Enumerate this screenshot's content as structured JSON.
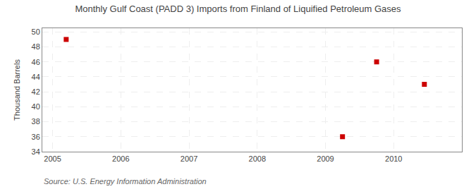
{
  "chart_data": {
    "type": "scatter",
    "title": "Monthly Gulf Coast (PADD 3) Imports from Finland of Liquified Petroleum Gases",
    "ylabel": "Thousand Barrels",
    "annotations": [
      "Source: U.S. Energy Information Administration"
    ],
    "x": [
      2005.2,
      2009.25,
      2009.75,
      2010.45
    ],
    "values": [
      49,
      36,
      46,
      43
    ],
    "color": "#cc0000",
    "marker": "square",
    "xlim": [
      2004.85,
      2011.0
    ],
    "ylim": [
      34,
      50.5
    ],
    "xticks": [
      2005,
      2006,
      2007,
      2008,
      2009,
      2010
    ],
    "yticks": [
      34,
      36,
      38,
      40,
      42,
      44,
      46,
      48,
      50
    ],
    "grid": true
  }
}
